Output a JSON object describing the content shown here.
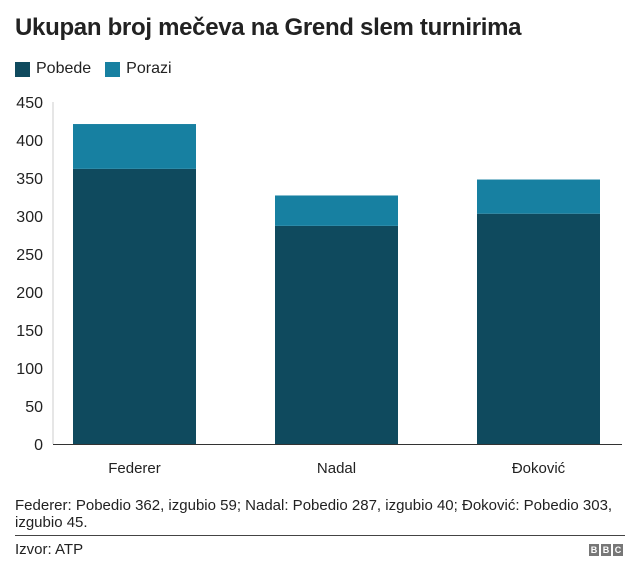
{
  "chart_data": {
    "type": "bar",
    "stacked": true,
    "title": "Ukupan broj mečeva na Grend slem turnirima",
    "categories": [
      "Federer",
      "Nadal",
      "Đoković"
    ],
    "series": [
      {
        "name": "Pobede",
        "values": [
          362,
          287,
          303
        ],
        "color": "#0f4a5e"
      },
      {
        "name": "Porazi",
        "values": [
          59,
          40,
          45
        ],
        "color": "#1780a1"
      }
    ],
    "yticks": [
      0,
      50,
      100,
      150,
      200,
      250,
      300,
      350,
      400,
      450
    ],
    "ylim": [
      0,
      450
    ],
    "xlabel": "",
    "ylabel": "",
    "legend": "top-left"
  },
  "footnote": "Federer: Pobedio 362, izgubio 59; Nadal: Pobedio 287, izgubio 40; Đoković: Pobedio 303, izgubio 45.",
  "source": "Izvor: ATP",
  "logo": "BBC"
}
